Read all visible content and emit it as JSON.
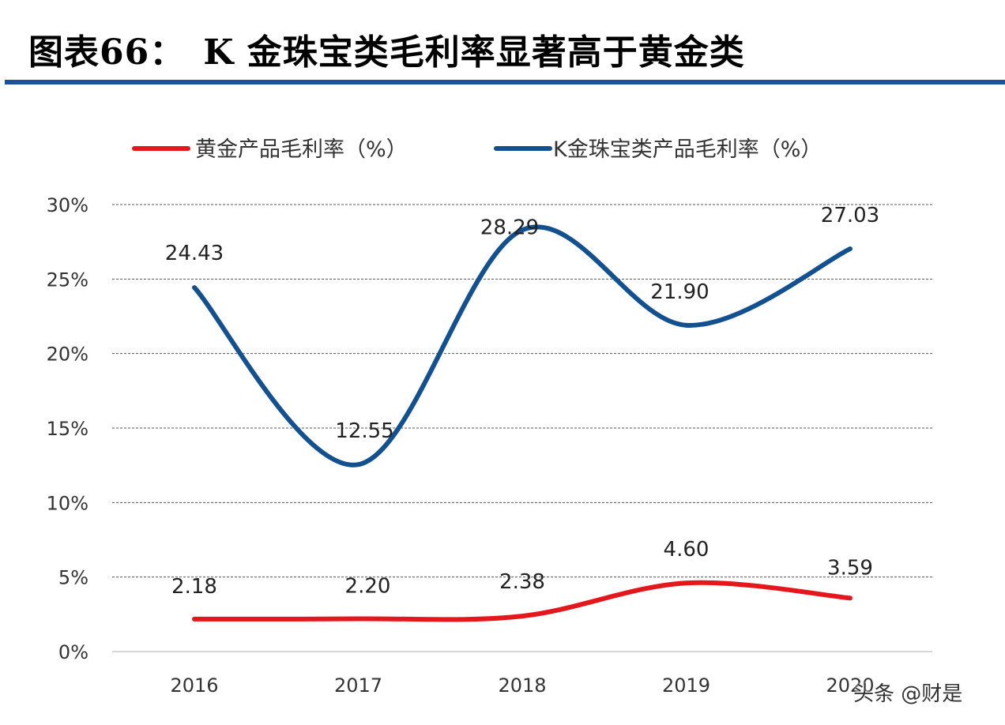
{
  "header": {
    "title": "图表66：　K 金珠宝类毛利率显著高于黄金类"
  },
  "watermark": "头条 @财是",
  "chart_data": {
    "type": "line",
    "categories": [
      "2016",
      "2017",
      "2018",
      "2019",
      "2020"
    ],
    "ylim": [
      0,
      30
    ],
    "y_ticks": [
      0,
      5,
      10,
      15,
      20,
      25,
      30
    ],
    "y_tick_labels": [
      "0%",
      "5%",
      "10%",
      "15%",
      "20%",
      "25%",
      "30%"
    ],
    "grid": true,
    "legend_position": "top",
    "series": [
      {
        "name": "黄金产品毛利率（%）",
        "color": "#e3171c",
        "values": [
          2.18,
          2.2,
          2.38,
          4.6,
          3.59
        ],
        "labels": [
          "2.18",
          "2.20",
          "2.38",
          "4.60",
          "3.59"
        ]
      },
      {
        "name": "K金珠宝类产品毛利率（%）",
        "color": "#12508f",
        "values": [
          24.43,
          12.55,
          28.29,
          21.9,
          27.03
        ],
        "labels": [
          "24.43",
          "12.55",
          "28.29",
          "21.90",
          "27.03"
        ]
      }
    ]
  }
}
